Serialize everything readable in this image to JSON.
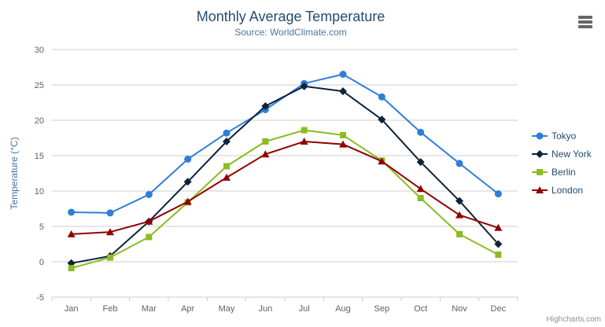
{
  "credits": {
    "label": "Highcharts.com"
  },
  "icons": {
    "context_menu": "hamburger-icon"
  },
  "colors": {
    "title": "#274b6d",
    "subtitle": "#4d759e",
    "axis_label": "#606060",
    "axis_title": "#4572a7",
    "gridline": "#cccccc",
    "axis_line": "#c0d0e0",
    "legend_text": "#274b6d",
    "credits": "#909090",
    "menu_icon": "#666666"
  },
  "chart_data": {
    "type": "line",
    "title": "Monthly Average Temperature",
    "subtitle": "Source: WorldClimate.com",
    "xlabel": "",
    "ylabel": "Temperature (°C)",
    "ylim": [
      -5,
      30
    ],
    "yticks": [
      -5,
      0,
      5,
      10,
      15,
      20,
      25,
      30
    ],
    "grid": "horizontal",
    "legend_position": "right",
    "categories": [
      "Jan",
      "Feb",
      "Mar",
      "Apr",
      "May",
      "Jun",
      "Jul",
      "Aug",
      "Sep",
      "Oct",
      "Nov",
      "Dec"
    ],
    "series": [
      {
        "name": "Tokyo",
        "color": "#2f7ed8",
        "marker": "circle",
        "values": [
          7.0,
          6.9,
          9.5,
          14.5,
          18.2,
          21.5,
          25.2,
          26.5,
          23.3,
          18.3,
          13.9,
          9.6
        ]
      },
      {
        "name": "New York",
        "color": "#0d233a",
        "marker": "diamond",
        "values": [
          -0.2,
          0.8,
          5.7,
          11.3,
          17.0,
          22.0,
          24.8,
          24.1,
          20.1,
          14.1,
          8.6,
          2.5
        ]
      },
      {
        "name": "Berlin",
        "color": "#8bbc21",
        "marker": "square",
        "values": [
          -0.9,
          0.6,
          3.5,
          8.4,
          13.5,
          17.0,
          18.6,
          17.9,
          14.3,
          9.0,
          3.9,
          1.0
        ]
      },
      {
        "name": "London",
        "color": "#910000",
        "marker": "triangle",
        "values": [
          3.9,
          4.2,
          5.7,
          8.5,
          11.9,
          15.2,
          17.0,
          16.6,
          14.2,
          10.3,
          6.6,
          4.8
        ]
      }
    ]
  }
}
